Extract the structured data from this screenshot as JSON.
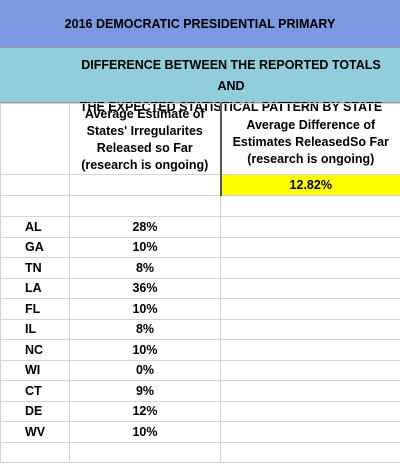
{
  "title": "2016 DEMOCRATIC PRESIDENTIAL PRIMARY",
  "subtitle_line1": "DIFFERENCE BETWEEN THE REPORTED TOTALS AND",
  "subtitle_line2": "THE EXPECTED STATISTICAL PATTERN BY STATE",
  "col2_header_lines": [
    "Average Estimate of",
    "States' Irregularites",
    "Released so Far",
    "(research is ongoing)"
  ],
  "col3_header_lines": [
    "Average Difference of",
    "Estimates ReleasedSo Far",
    "(research is ongoing)"
  ],
  "average_difference": "12.82%",
  "highlight_color": "#ffff00",
  "title_color": "#7b99e0",
  "subtitle_color": "#92cddc",
  "states": [
    {
      "state": "AL",
      "estimate": "28%"
    },
    {
      "state": "GA",
      "estimate": "10%"
    },
    {
      "state": "TN",
      "estimate": "8%"
    },
    {
      "state": "LA",
      "estimate": "36%"
    },
    {
      "state": "FL",
      "estimate": "10%"
    },
    {
      "state": "IL",
      "estimate": "8%"
    },
    {
      "state": "NC",
      "estimate": "10%"
    },
    {
      "state": "WI",
      "estimate": "0%"
    },
    {
      "state": "CT",
      "estimate": "9%"
    },
    {
      "state": "DE",
      "estimate": "12%"
    },
    {
      "state": "WV",
      "estimate": "10%"
    }
  ]
}
